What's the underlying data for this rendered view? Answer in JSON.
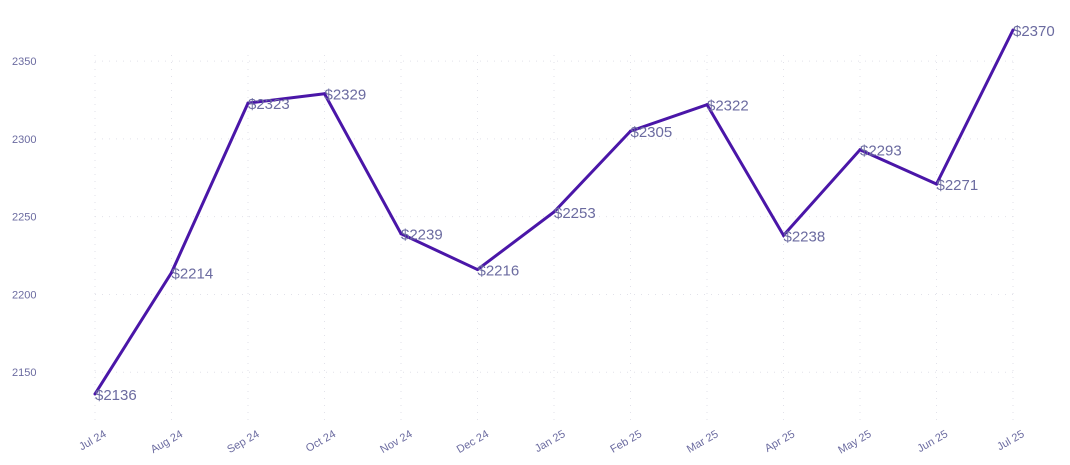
{
  "chart_data": {
    "type": "line",
    "categories": [
      "Jul 24",
      "Aug 24",
      "Sep 24",
      "Oct 24",
      "Nov 24",
      "Dec 24",
      "Jan 25",
      "Feb 25",
      "Mar 25",
      "Apr 25",
      "May 25",
      "Jun 25",
      "Jul 25"
    ],
    "values": [
      2136,
      2214,
      2323,
      2329,
      2239,
      2216,
      2253,
      2305,
      2322,
      2238,
      2293,
      2271,
      2370
    ],
    "data_labels": [
      "$2136",
      "$2214",
      "$2323",
      "$2329",
      "$2239",
      "$2216",
      "$2253",
      "$2305",
      "$2322",
      "$2238",
      "$2293",
      "$2271",
      "$2370"
    ],
    "y_ticks": [
      "2150",
      "2200",
      "2250",
      "2300",
      "2350"
    ],
    "ylim": [
      2128,
      2384
    ],
    "title": "",
    "xlabel": "",
    "ylabel": "",
    "grid": true,
    "legend": "none",
    "colors": {
      "line": "#4a16a8",
      "text": "#6b6ba0",
      "grid": "#e2e2ea"
    }
  }
}
